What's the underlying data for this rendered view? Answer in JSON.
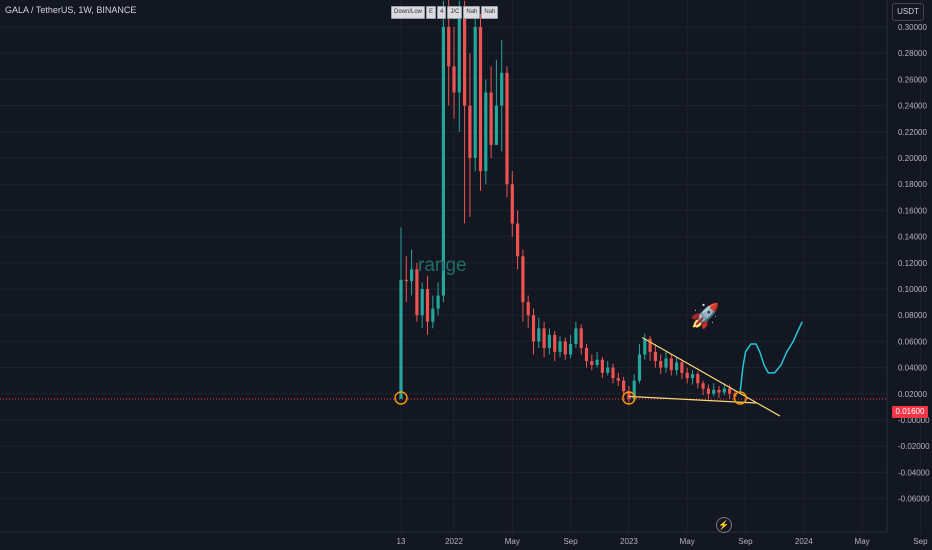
{
  "header": {
    "title": "GALA / TetherUS, 1W, BINANCE"
  },
  "toolbar": {
    "buttons": [
      "Down/Low",
      "E",
      "4",
      "J/C",
      "Nah",
      "Nah"
    ]
  },
  "price_axis": {
    "currency": "USDT",
    "last_price": "0.01600"
  },
  "annotations": {
    "range_label": "range",
    "rocket": "🚀",
    "forward_glyph": "⚡"
  },
  "colors": {
    "background": "#131722",
    "up": "#26a69a",
    "down": "#ef5350",
    "trendline": "#f9d976",
    "marker": "#ff9800",
    "projection": "#26c6da",
    "price_line": "#f23645"
  },
  "chart_data": {
    "type": "candlestick",
    "title": "GALA / TetherUS, 1W, BINANCE",
    "ylim": [
      -0.062,
      0.315
    ],
    "y_ticks": [
      "0.30000",
      "0.28000",
      "0.26000",
      "0.24000",
      "0.22000",
      "0.20000",
      "0.18000",
      "0.16000",
      "0.14000",
      "0.12000",
      "0.10000",
      "0.08000",
      "0.06000",
      "0.04000",
      "0.02000",
      "-0.00000",
      "-0.02000",
      "-0.04000",
      "-0.06000"
    ],
    "y_tick_values": [
      0.3,
      0.28,
      0.26,
      0.24,
      0.22,
      0.2,
      0.18,
      0.16,
      0.14,
      0.12,
      0.1,
      0.08,
      0.06,
      0.04,
      0.02,
      0,
      -0.02,
      -0.04,
      -0.06
    ],
    "x_ticks": [
      "13",
      "2022",
      "May",
      "Sep",
      "2023",
      "May",
      "Sep",
      "2024",
      "May",
      "Sep"
    ],
    "x_tick_weeks": [
      0,
      10,
      21,
      32,
      43,
      54,
      65,
      76,
      87,
      98
    ],
    "last_price": 0.016,
    "candles": [
      [
        0.016,
        0.107,
        0.147,
        0.016
      ],
      [
        0.107,
        0.106,
        0.125,
        0.09
      ],
      [
        0.106,
        0.115,
        0.13,
        0.095
      ],
      [
        0.115,
        0.08,
        0.12,
        0.075
      ],
      [
        0.08,
        0.1,
        0.105,
        0.07
      ],
      [
        0.1,
        0.075,
        0.11,
        0.065
      ],
      [
        0.075,
        0.085,
        0.095,
        0.07
      ],
      [
        0.085,
        0.095,
        0.105,
        0.08
      ],
      [
        0.095,
        0.3,
        0.32,
        0.09
      ],
      [
        0.3,
        0.27,
        0.33,
        0.24
      ],
      [
        0.27,
        0.25,
        0.3,
        0.23
      ],
      [
        0.25,
        0.31,
        0.32,
        0.22
      ],
      [
        0.31,
        0.24,
        0.32,
        0.15
      ],
      [
        0.24,
        0.2,
        0.28,
        0.155
      ],
      [
        0.2,
        0.3,
        0.31,
        0.19
      ],
      [
        0.3,
        0.19,
        0.31,
        0.175
      ],
      [
        0.19,
        0.25,
        0.26,
        0.18
      ],
      [
        0.25,
        0.21,
        0.27,
        0.2
      ],
      [
        0.21,
        0.24,
        0.275,
        0.21
      ],
      [
        0.24,
        0.265,
        0.29,
        0.205
      ],
      [
        0.265,
        0.18,
        0.27,
        0.17
      ],
      [
        0.18,
        0.15,
        0.19,
        0.14
      ],
      [
        0.15,
        0.125,
        0.16,
        0.115
      ],
      [
        0.125,
        0.09,
        0.13,
        0.075
      ],
      [
        0.09,
        0.08,
        0.095,
        0.07
      ],
      [
        0.08,
        0.06,
        0.085,
        0.05
      ],
      [
        0.06,
        0.07,
        0.078,
        0.055
      ],
      [
        0.07,
        0.055,
        0.075,
        0.048
      ],
      [
        0.055,
        0.065,
        0.07,
        0.05
      ],
      [
        0.065,
        0.052,
        0.068,
        0.045
      ],
      [
        0.052,
        0.06,
        0.064,
        0.048
      ],
      [
        0.06,
        0.05,
        0.063,
        0.046
      ],
      [
        0.05,
        0.058,
        0.065,
        0.047
      ],
      [
        0.058,
        0.07,
        0.075,
        0.055
      ],
      [
        0.07,
        0.055,
        0.073,
        0.05
      ],
      [
        0.055,
        0.045,
        0.058,
        0.04
      ],
      [
        0.045,
        0.042,
        0.05,
        0.038
      ],
      [
        0.042,
        0.046,
        0.052,
        0.04
      ],
      [
        0.046,
        0.036,
        0.048,
        0.032
      ],
      [
        0.036,
        0.04,
        0.045,
        0.034
      ],
      [
        0.04,
        0.032,
        0.043,
        0.028
      ],
      [
        0.032,
        0.03,
        0.036,
        0.026
      ],
      [
        0.03,
        0.022,
        0.033,
        0.018
      ],
      [
        0.022,
        0.016,
        0.026,
        0.012
      ],
      [
        0.016,
        0.03,
        0.035,
        0.014
      ],
      [
        0.03,
        0.05,
        0.058,
        0.028
      ],
      [
        0.05,
        0.062,
        0.066,
        0.046
      ],
      [
        0.062,
        0.052,
        0.064,
        0.045
      ],
      [
        0.052,
        0.045,
        0.058,
        0.04
      ],
      [
        0.045,
        0.04,
        0.05,
        0.035
      ],
      [
        0.04,
        0.047,
        0.052,
        0.036
      ],
      [
        0.047,
        0.038,
        0.05,
        0.034
      ],
      [
        0.038,
        0.044,
        0.048,
        0.034
      ],
      [
        0.044,
        0.036,
        0.046,
        0.031
      ],
      [
        0.036,
        0.032,
        0.04,
        0.028
      ],
      [
        0.032,
        0.035,
        0.038,
        0.027
      ],
      [
        0.035,
        0.028,
        0.037,
        0.024
      ],
      [
        0.028,
        0.024,
        0.03,
        0.019
      ],
      [
        0.024,
        0.02,
        0.027,
        0.016
      ],
      [
        0.02,
        0.023,
        0.028,
        0.018
      ],
      [
        0.023,
        0.021,
        0.026,
        0.017
      ],
      [
        0.021,
        0.024,
        0.028,
        0.019
      ],
      [
        0.024,
        0.02,
        0.027,
        0.016
      ],
      [
        0.02,
        0.018,
        0.023,
        0.014
      ]
    ],
    "trendlines": [
      {
        "name": "upper-trendline",
        "from": [
          45.5,
          0.063
        ],
        "to": [
          71.5,
          0.003
        ]
      },
      {
        "name": "lower-trendline",
        "from": [
          43.0,
          0.018
        ],
        "to": [
          67.0,
          0.013
        ]
      }
    ],
    "circle_markers": [
      [
        0,
        0.0168
      ],
      [
        43,
        0.0168
      ],
      [
        64,
        0.0168
      ]
    ],
    "projection": [
      [
        64,
        0.022
      ],
      [
        64.5,
        0.04
      ],
      [
        65,
        0.052
      ],
      [
        66,
        0.058
      ],
      [
        67,
        0.058
      ],
      [
        67.7,
        0.052
      ],
      [
        68.5,
        0.042
      ],
      [
        69.3,
        0.036
      ],
      [
        70.5,
        0.036
      ],
      [
        71.7,
        0.042
      ],
      [
        72.8,
        0.052
      ],
      [
        74,
        0.06
      ],
      [
        75,
        0.069
      ],
      [
        75.7,
        0.075
      ]
    ]
  }
}
